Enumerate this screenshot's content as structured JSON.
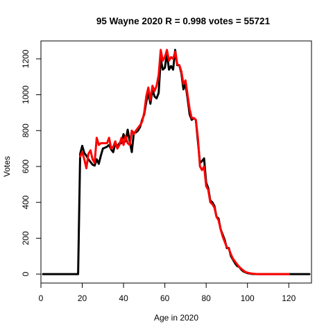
{
  "chart_data": {
    "type": "line",
    "title": "95 Wayne 2020 R = 0.998 votes = 55721",
    "xlabel": "Age in 2020",
    "ylabel": "Votes",
    "xlim": [
      0,
      131
    ],
    "ylim": [
      -50,
      1300
    ],
    "xticks": [
      0,
      20,
      40,
      60,
      80,
      100,
      120
    ],
    "yticks": [
      0,
      200,
      400,
      600,
      800,
      1000,
      1200
    ],
    "grid": false,
    "series": [
      {
        "color": "#000000",
        "points": [
          [
            1,
            0
          ],
          [
            18,
            0
          ],
          [
            19,
            670
          ],
          [
            20,
            715
          ],
          [
            21,
            675
          ],
          [
            22,
            660
          ],
          [
            23,
            640
          ],
          [
            24,
            625
          ],
          [
            25,
            610
          ],
          [
            26,
            605
          ],
          [
            27,
            640
          ],
          [
            28,
            615
          ],
          [
            29,
            660
          ],
          [
            30,
            700
          ],
          [
            31,
            705
          ],
          [
            32,
            710
          ],
          [
            33,
            720
          ],
          [
            34,
            695
          ],
          [
            35,
            680
          ],
          [
            36,
            730
          ],
          [
            37,
            710
          ],
          [
            38,
            730
          ],
          [
            39,
            730
          ],
          [
            40,
            780
          ],
          [
            41,
            740
          ],
          [
            42,
            805
          ],
          [
            43,
            740
          ],
          [
            44,
            680
          ],
          [
            45,
            790
          ],
          [
            46,
            790
          ],
          [
            47,
            800
          ],
          [
            48,
            820
          ],
          [
            49,
            860
          ],
          [
            50,
            890
          ],
          [
            51,
            960
          ],
          [
            52,
            1010
          ],
          [
            53,
            950
          ],
          [
            54,
            1030
          ],
          [
            55,
            990
          ],
          [
            56,
            980
          ],
          [
            57,
            1010
          ],
          [
            58,
            1200
          ],
          [
            59,
            1140
          ],
          [
            60,
            1150
          ],
          [
            61,
            1230
          ],
          [
            62,
            1140
          ],
          [
            63,
            1160
          ],
          [
            64,
            1140
          ],
          [
            65,
            1250
          ],
          [
            66,
            1165
          ],
          [
            67,
            1165
          ],
          [
            68,
            1120
          ],
          [
            69,
            1030
          ],
          [
            70,
            1060
          ],
          [
            71,
            980
          ],
          [
            72,
            890
          ],
          [
            73,
            860
          ],
          [
            74,
            870
          ],
          [
            75,
            860
          ],
          [
            76,
            740
          ],
          [
            77,
            620
          ],
          [
            78,
            630
          ],
          [
            79,
            645
          ],
          [
            80,
            510
          ],
          [
            81,
            480
          ],
          [
            82,
            410
          ],
          [
            83,
            400
          ],
          [
            84,
            380
          ],
          [
            85,
            320
          ],
          [
            86,
            310
          ],
          [
            87,
            250
          ],
          [
            88,
            220
          ],
          [
            89,
            190
          ],
          [
            90,
            145
          ],
          [
            91,
            145
          ],
          [
            92,
            100
          ],
          [
            93,
            80
          ],
          [
            94,
            60
          ],
          [
            95,
            45
          ],
          [
            96,
            40
          ],
          [
            97,
            25
          ],
          [
            98,
            15
          ],
          [
            99,
            10
          ],
          [
            100,
            5
          ],
          [
            101,
            3
          ],
          [
            102,
            1
          ],
          [
            105,
            0
          ],
          [
            110,
            0
          ],
          [
            120,
            0
          ],
          [
            130,
            0
          ]
        ]
      },
      {
        "color": "#ff0000",
        "points": [
          [
            19,
            655
          ],
          [
            20,
            680
          ],
          [
            21,
            640
          ],
          [
            22,
            590
          ],
          [
            23,
            670
          ],
          [
            24,
            690
          ],
          [
            25,
            640
          ],
          [
            26,
            620
          ],
          [
            27,
            760
          ],
          [
            28,
            720
          ],
          [
            29,
            730
          ],
          [
            30,
            730
          ],
          [
            31,
            730
          ],
          [
            32,
            730
          ],
          [
            33,
            760
          ],
          [
            34,
            700
          ],
          [
            35,
            710
          ],
          [
            36,
            740
          ],
          [
            37,
            700
          ],
          [
            38,
            720
          ],
          [
            39,
            760
          ],
          [
            40,
            720
          ],
          [
            41,
            770
          ],
          [
            42,
            730
          ],
          [
            43,
            720
          ],
          [
            44,
            800
          ],
          [
            45,
            780
          ],
          [
            46,
            800
          ],
          [
            47,
            815
          ],
          [
            48,
            830
          ],
          [
            49,
            850
          ],
          [
            50,
            900
          ],
          [
            51,
            990
          ],
          [
            52,
            1040
          ],
          [
            53,
            970
          ],
          [
            54,
            1050
          ],
          [
            55,
            1020
          ],
          [
            56,
            1050
          ],
          [
            57,
            1110
          ],
          [
            58,
            1250
          ],
          [
            59,
            1190
          ],
          [
            60,
            1210
          ],
          [
            61,
            1250
          ],
          [
            62,
            1190
          ],
          [
            63,
            1210
          ],
          [
            64,
            1200
          ],
          [
            65,
            1240
          ],
          [
            66,
            1170
          ],
          [
            67,
            1165
          ],
          [
            68,
            1130
          ],
          [
            69,
            1060
          ],
          [
            70,
            1080
          ],
          [
            71,
            1000
          ],
          [
            72,
            920
          ],
          [
            73,
            870
          ],
          [
            74,
            870
          ],
          [
            75,
            860
          ],
          [
            76,
            760
          ],
          [
            77,
            600
          ],
          [
            78,
            580
          ],
          [
            79,
            600
          ],
          [
            80,
            490
          ],
          [
            81,
            470
          ],
          [
            82,
            400
          ],
          [
            83,
            390
          ],
          [
            84,
            370
          ],
          [
            85,
            320
          ],
          [
            86,
            300
          ],
          [
            87,
            250
          ],
          [
            88,
            210
          ],
          [
            89,
            180
          ],
          [
            90,
            150
          ],
          [
            91,
            140
          ],
          [
            92,
            110
          ],
          [
            93,
            85
          ],
          [
            94,
            70
          ],
          [
            95,
            55
          ],
          [
            96,
            40
          ],
          [
            97,
            30
          ],
          [
            98,
            20
          ],
          [
            99,
            12
          ],
          [
            100,
            8
          ],
          [
            101,
            5
          ],
          [
            102,
            3
          ],
          [
            103,
            2
          ],
          [
            104,
            1
          ],
          [
            105,
            0
          ],
          [
            106,
            0
          ],
          [
            107,
            0
          ],
          [
            108,
            0
          ],
          [
            109,
            0
          ],
          [
            110,
            0
          ],
          [
            111,
            0
          ],
          [
            119,
            0
          ],
          [
            120,
            0
          ]
        ]
      }
    ]
  }
}
